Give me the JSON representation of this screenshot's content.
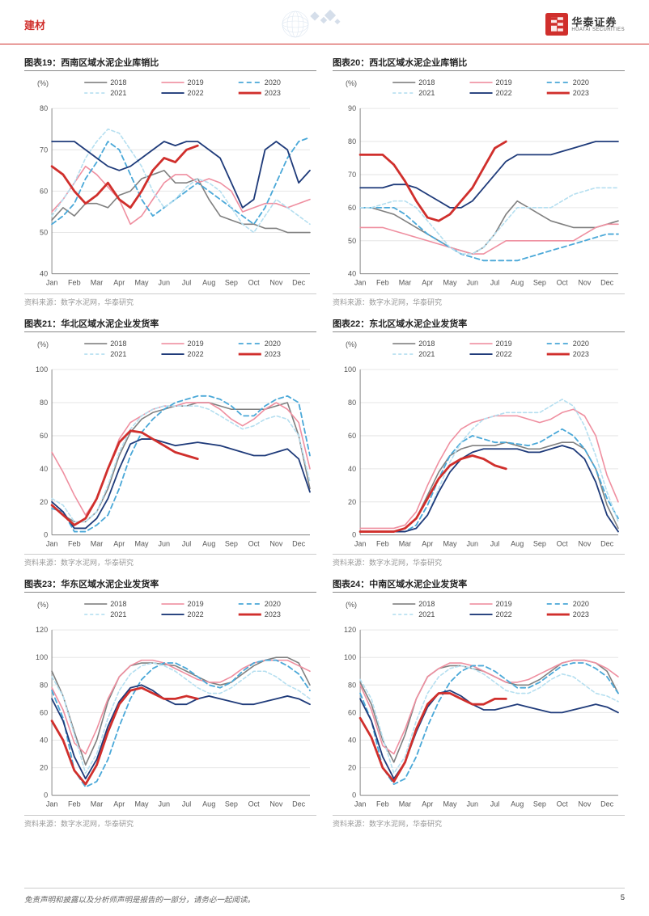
{
  "page": {
    "category": "建材",
    "brand_cn": "华泰证券",
    "brand_en": "HUATAI SECURITIES",
    "disclaimer": "免责声明和披露以及分析师声明是报告的一部分，请务必一起阅读。",
    "page_number": "5"
  },
  "style": {
    "accent": "#d02f2c",
    "grid_color": "#e6e6e6",
    "axis_color": "#888888",
    "tick_font_size": 9,
    "title_font_size": 11,
    "background": "#ffffff",
    "series_colors": {
      "2018": "#808080",
      "2019": "#ef8fa0",
      "2020": "#4aa8d8",
      "2021": "#b5dff0",
      "2022": "#1f3b7a",
      "2023": "#d02f2c"
    },
    "series_dash": {
      "2018": "",
      "2019": "",
      "2020": "6 4",
      "2021": "4 3",
      "2022": "",
      "2023": ""
    },
    "series_width": {
      "2018": 1.6,
      "2019": 1.6,
      "2020": 1.8,
      "2021": 1.6,
      "2022": 1.8,
      "2023": 2.8
    },
    "legend_labels": [
      "2018",
      "2019",
      "2020",
      "2021",
      "2022",
      "2023"
    ],
    "months": [
      "Jan",
      "Feb",
      "Mar",
      "Apr",
      "May",
      "Jun",
      "Jul",
      "Aug",
      "Sep",
      "Oct",
      "Nov",
      "Dec"
    ]
  },
  "charts": [
    {
      "id": 19,
      "title": "图表19：西南区域水泥企业库销比",
      "source": "资料来源：数字水泥网，华泰研究",
      "y_unit": "(%)",
      "ylim": [
        40,
        80
      ],
      "ytick_step": 10,
      "series": {
        "2018": [
          53,
          56,
          54,
          57,
          57,
          56,
          59,
          60,
          63,
          64,
          65,
          62,
          62,
          63,
          58,
          54,
          53,
          52,
          52,
          51,
          51,
          50,
          50,
          50
        ],
        "2019": [
          55,
          58,
          62,
          66,
          64,
          61,
          58,
          52,
          54,
          58,
          62,
          64,
          64,
          62,
          63,
          62,
          60,
          55,
          56,
          57,
          57,
          56,
          57,
          58
        ],
        "2020": [
          52,
          54,
          57,
          63,
          67,
          72,
          70,
          64,
          58,
          54,
          56,
          58,
          60,
          62,
          60,
          58,
          56,
          54,
          52,
          56,
          62,
          68,
          72,
          73
        ],
        "2021": [
          54,
          58,
          62,
          68,
          72,
          75,
          74,
          70,
          66,
          60,
          56,
          58,
          61,
          63,
          62,
          60,
          56,
          52,
          50,
          54,
          58,
          56,
          54,
          52
        ],
        "2022": [
          72,
          72,
          72,
          70,
          68,
          66,
          65,
          66,
          68,
          70,
          72,
          71,
          72,
          72,
          70,
          68,
          62,
          56,
          58,
          70,
          72,
          70,
          62,
          65
        ],
        "2023": [
          66,
          64,
          60,
          57,
          59,
          62,
          58,
          56,
          60,
          65,
          68,
          67,
          70,
          71
        ]
      }
    },
    {
      "id": 20,
      "title": "图表20：西北区域水泥企业库销比",
      "source": "资料来源：数字水泥网，华泰研究",
      "y_unit": "(%)",
      "ylim": [
        40,
        90
      ],
      "ytick_step": 10,
      "series": {
        "2018": [
          60,
          60,
          59,
          58,
          56,
          54,
          52,
          50,
          48,
          47,
          46,
          48,
          52,
          58,
          62,
          60,
          58,
          56,
          55,
          54,
          54,
          54,
          55,
          56
        ],
        "2019": [
          54,
          54,
          54,
          53,
          52,
          51,
          50,
          49,
          48,
          47,
          46,
          46,
          48,
          50,
          50,
          50,
          50,
          50,
          50,
          50,
          52,
          54,
          55,
          55
        ],
        "2020": [
          60,
          60,
          60,
          60,
          58,
          55,
          52,
          50,
          48,
          46,
          45,
          44,
          44,
          44,
          44,
          45,
          46,
          47,
          48,
          49,
          50,
          51,
          52,
          52
        ],
        "2021": [
          60,
          60,
          61,
          62,
          62,
          60,
          56,
          52,
          48,
          46,
          46,
          48,
          52,
          56,
          60,
          60,
          60,
          60,
          62,
          64,
          65,
          66,
          66,
          66
        ],
        "2022": [
          66,
          66,
          66,
          67,
          67,
          66,
          64,
          62,
          60,
          60,
          62,
          66,
          70,
          74,
          76,
          76,
          76,
          76,
          77,
          78,
          79,
          80,
          80,
          80
        ],
        "2023": [
          76,
          76,
          76,
          73,
          68,
          62,
          57,
          56,
          58,
          62,
          66,
          72,
          78,
          80
        ]
      }
    },
    {
      "id": 21,
      "title": "图表21：华北区域水泥企业发货率",
      "source": "资料来源：数字水泥网，华泰研究",
      "y_unit": "(%)",
      "ylim": [
        0,
        100
      ],
      "ytick_step": 20,
      "series": {
        "2018": [
          18,
          12,
          8,
          8,
          14,
          28,
          48,
          62,
          70,
          74,
          76,
          78,
          78,
          80,
          80,
          78,
          76,
          76,
          76,
          76,
          78,
          80,
          60,
          28
        ],
        "2019": [
          50,
          38,
          24,
          12,
          22,
          40,
          58,
          68,
          72,
          76,
          78,
          78,
          80,
          80,
          80,
          76,
          70,
          66,
          70,
          76,
          80,
          76,
          68,
          40
        ],
        "2020": [
          16,
          14,
          2,
          2,
          6,
          12,
          28,
          48,
          62,
          70,
          76,
          80,
          82,
          84,
          84,
          82,
          78,
          72,
          72,
          78,
          82,
          84,
          80,
          48
        ],
        "2021": [
          22,
          18,
          8,
          8,
          14,
          30,
          50,
          64,
          72,
          76,
          78,
          78,
          78,
          78,
          76,
          72,
          68,
          64,
          66,
          70,
          72,
          70,
          60,
          32
        ],
        "2022": [
          20,
          14,
          4,
          4,
          10,
          22,
          40,
          55,
          58,
          58,
          56,
          54,
          55,
          56,
          55,
          54,
          52,
          50,
          48,
          48,
          50,
          52,
          46,
          26
        ],
        "2023": [
          18,
          12,
          6,
          10,
          22,
          40,
          56,
          63,
          62,
          58,
          54,
          50,
          48,
          46
        ]
      }
    },
    {
      "id": 22,
      "title": "图表22：东北区域水泥企业发货率",
      "source": "资料来源：数字水泥网，华泰研究",
      "y_unit": "(%)",
      "ylim": [
        0,
        100
      ],
      "ytick_step": 20,
      "series": {
        "2018": [
          2,
          2,
          2,
          2,
          4,
          10,
          24,
          38,
          48,
          52,
          54,
          54,
          54,
          56,
          54,
          52,
          52,
          54,
          56,
          56,
          52,
          40,
          18,
          4
        ],
        "2019": [
          4,
          4,
          4,
          4,
          6,
          14,
          30,
          44,
          56,
          64,
          68,
          70,
          72,
          72,
          72,
          70,
          68,
          70,
          74,
          76,
          72,
          60,
          36,
          20
        ],
        "2020": [
          2,
          2,
          2,
          2,
          2,
          6,
          18,
          34,
          48,
          56,
          60,
          58,
          56,
          56,
          55,
          54,
          56,
          60,
          64,
          60,
          52,
          40,
          22,
          10
        ],
        "2021": [
          2,
          2,
          2,
          2,
          2,
          4,
          12,
          28,
          44,
          56,
          64,
          70,
          72,
          74,
          74,
          74,
          74,
          78,
          82,
          78,
          66,
          48,
          26,
          8
        ],
        "2022": [
          2,
          2,
          2,
          2,
          2,
          4,
          12,
          26,
          38,
          46,
          50,
          52,
          52,
          52,
          52,
          50,
          50,
          52,
          54,
          52,
          46,
          32,
          12,
          2
        ],
        "2023": [
          2,
          2,
          2,
          2,
          4,
          10,
          22,
          34,
          42,
          46,
          48,
          46,
          42,
          40
        ]
      }
    },
    {
      "id": 23,
      "title": "图表23：华东区域水泥企业发货率",
      "source": "资料来源：数字水泥网，华泰研究",
      "y_unit": "(%)",
      "ylim": [
        0,
        120
      ],
      "ytick_step": 20,
      "series": {
        "2018": [
          90,
          72,
          46,
          22,
          40,
          68,
          86,
          94,
          96,
          96,
          95,
          94,
          90,
          86,
          82,
          80,
          82,
          88,
          94,
          98,
          100,
          100,
          96,
          80
        ],
        "2019": [
          78,
          62,
          38,
          30,
          48,
          70,
          86,
          94,
          98,
          98,
          96,
          92,
          88,
          84,
          82,
          82,
          86,
          92,
          96,
          98,
          98,
          98,
          94,
          90
        ],
        "2020": [
          76,
          56,
          18,
          6,
          10,
          26,
          50,
          70,
          84,
          92,
          96,
          96,
          92,
          86,
          80,
          78,
          82,
          90,
          96,
          98,
          98,
          94,
          88,
          76
        ],
        "2021": [
          86,
          72,
          44,
          16,
          30,
          56,
          76,
          88,
          94,
          96,
          94,
          90,
          84,
          78,
          74,
          74,
          78,
          84,
          90,
          90,
          86,
          80,
          76,
          70
        ],
        "2022": [
          70,
          54,
          28,
          12,
          26,
          50,
          68,
          78,
          80,
          76,
          70,
          66,
          66,
          70,
          72,
          70,
          68,
          66,
          66,
          68,
          70,
          72,
          70,
          66
        ],
        "2023": [
          54,
          40,
          18,
          8,
          22,
          46,
          66,
          76,
          78,
          74,
          70,
          70,
          72,
          70
        ]
      }
    },
    {
      "id": 24,
      "title": "图表24：中南区域水泥企业发货率",
      "source": "资料来源：数字水泥网，华泰研究",
      "y_unit": "(%)",
      "ylim": [
        0,
        120
      ],
      "ytick_step": 20,
      "series": {
        "2018": [
          82,
          66,
          40,
          24,
          44,
          70,
          86,
          92,
          94,
          94,
          92,
          90,
          86,
          82,
          80,
          80,
          84,
          90,
          96,
          98,
          98,
          96,
          90,
          74
        ],
        "2019": [
          80,
          62,
          36,
          30,
          48,
          70,
          86,
          92,
          96,
          96,
          94,
          90,
          86,
          82,
          82,
          84,
          88,
          92,
          96,
          98,
          98,
          96,
          92,
          86
        ],
        "2020": [
          74,
          54,
          20,
          8,
          12,
          28,
          50,
          68,
          82,
          90,
          94,
          94,
          90,
          84,
          78,
          78,
          82,
          88,
          94,
          96,
          96,
          92,
          86,
          74
        ],
        "2021": [
          84,
          70,
          42,
          16,
          28,
          54,
          74,
          86,
          92,
          94,
          92,
          88,
          82,
          76,
          74,
          74,
          78,
          84,
          88,
          86,
          80,
          74,
          72,
          68
        ],
        "2022": [
          70,
          54,
          28,
          12,
          24,
          46,
          64,
          74,
          76,
          72,
          66,
          62,
          62,
          64,
          66,
          64,
          62,
          60,
          60,
          62,
          64,
          66,
          64,
          60
        ],
        "2023": [
          56,
          42,
          20,
          10,
          24,
          48,
          66,
          74,
          74,
          70,
          66,
          66,
          70,
          70
        ]
      }
    }
  ]
}
